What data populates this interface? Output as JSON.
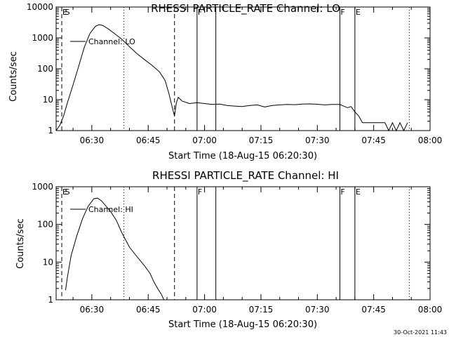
{
  "footer": {
    "timestamp": "30-Oct-2021 11:43"
  },
  "chart_data": [
    {
      "type": "line",
      "title": "RHESSI PARTICLE_RATE Channel: LO",
      "xlabel": "Start Time (18-Aug-15 06:20:30)",
      "ylabel": "Counts/sec",
      "y_scale": "log",
      "ylim": [
        1,
        10000
      ],
      "xlim": [
        "06:20:30",
        "08:00"
      ],
      "x_ticks": [
        "06:30",
        "06:45",
        "07:00",
        "07:15",
        "07:30",
        "07:45",
        "08:00"
      ],
      "y_ticks": [
        "1",
        "10",
        "100",
        "1000",
        "10000"
      ],
      "legend": {
        "label": "Channel: LO",
        "placement": "top-left"
      },
      "series": [
        {
          "name": "Channel: LO",
          "x": [
            "06:20:30",
            "06:21:30",
            "06:22:30",
            "06:23:30",
            "06:25:00",
            "06:26:30",
            "06:28:00",
            "06:29:30",
            "06:31:00",
            "06:32:00",
            "06:33:00",
            "06:34:30",
            "06:36:00",
            "06:38:00",
            "06:40:00",
            "06:42:00",
            "06:44:00",
            "06:46:00",
            "06:48:00",
            "06:49:30",
            "06:50:30",
            "06:51:30",
            "06:52:00",
            "06:52:30",
            "06:53:00",
            "06:54:00",
            "06:56:00",
            "06:58:00",
            "07:00:00",
            "07:02:00",
            "07:04:00",
            "07:06:00",
            "07:08:00",
            "07:10:00",
            "07:12:00",
            "07:14:00",
            "07:16:00",
            "07:18:00",
            "07:20:00",
            "07:22:00",
            "07:24:00",
            "07:26:00",
            "07:28:00",
            "07:30:00",
            "07:32:00",
            "07:34:00",
            "07:36:00",
            "07:38:00",
            "07:39:00",
            "07:40:00",
            "07:41:00",
            "07:42:00",
            "07:43:00",
            "07:44:00",
            "07:45:00",
            "07:46:00",
            "07:47:00",
            "07:48:00",
            "07:49:00",
            "07:50:00",
            "07:51:00",
            "07:52:00",
            "07:53:00",
            "07:54:00"
          ],
          "values": [
            1,
            1.5,
            3,
            8,
            30,
            120,
            500,
            1400,
            2400,
            2700,
            2500,
            1900,
            1400,
            900,
            520,
            310,
            200,
            130,
            80,
            42,
            16,
            5,
            3,
            8,
            12,
            9,
            7.5,
            8,
            7.5,
            7,
            7.2,
            6.5,
            6.2,
            6,
            6.5,
            6.8,
            5.8,
            6.5,
            6.8,
            7,
            6.9,
            7.2,
            7.3,
            7.1,
            6.8,
            7,
            7,
            5.5,
            6,
            4,
            3,
            1.8,
            1.8,
            1.8,
            1.8,
            1.8,
            1.8,
            1.8,
            1,
            1.8,
            1,
            1.8,
            1,
            1.8
          ]
        }
      ],
      "markers": [
        {
          "label": "E",
          "time": "06:22:00",
          "style": "dashed"
        },
        {
          "label": "S",
          "time": "06:22:40",
          "style": "none"
        },
        {
          "label": "",
          "time": "06:38:30",
          "style": "dotted"
        },
        {
          "label": "",
          "time": "06:52:00",
          "style": "dashed"
        },
        {
          "label": "F",
          "time": "06:58:00",
          "style": "solid"
        },
        {
          "label": "",
          "time": "07:03:00",
          "style": "solid"
        },
        {
          "label": "F",
          "time": "07:36:00",
          "style": "solid"
        },
        {
          "label": "E",
          "time": "07:40:00",
          "style": "solid"
        },
        {
          "label": "",
          "time": "07:54:30",
          "style": "dotted"
        }
      ]
    },
    {
      "type": "line",
      "title": "RHESSI PARTICLE_RATE Channel: HI",
      "xlabel": "Start Time (18-Aug-15 06:20:30)",
      "ylabel": "Counts/sec",
      "y_scale": "log",
      "ylim": [
        1,
        1000
      ],
      "xlim": [
        "06:20:30",
        "08:00"
      ],
      "x_ticks": [
        "06:30",
        "06:45",
        "07:00",
        "07:15",
        "07:30",
        "07:45",
        "08:00"
      ],
      "y_ticks": [
        "1",
        "10",
        "100",
        "1000"
      ],
      "legend": {
        "label": "Channel: HI",
        "placement": "top-left"
      },
      "series": [
        {
          "name": "Channel: HI",
          "x": [
            "06:23:00",
            "06:23:30",
            "06:24:30",
            "06:26:00",
            "06:27:30",
            "06:29:00",
            "06:30:30",
            "06:31:30",
            "06:32:30",
            "06:33:30",
            "06:35:00",
            "06:36:30",
            "06:38:00",
            "06:40:00",
            "06:42:00",
            "06:44:00",
            "06:45:30",
            "06:46:30",
            "06:47:30",
            "06:48:30",
            "06:49:10"
          ],
          "values": [
            1.8,
            4,
            15,
            50,
            140,
            300,
            480,
            500,
            430,
            330,
            220,
            130,
            60,
            25,
            14,
            8,
            5,
            3,
            2,
            1.4,
            1
          ]
        }
      ],
      "markers": [
        {
          "label": "E",
          "time": "06:22:00",
          "style": "dashed"
        },
        {
          "label": "S",
          "time": "06:22:40",
          "style": "none"
        },
        {
          "label": "",
          "time": "06:38:30",
          "style": "dotted"
        },
        {
          "label": "",
          "time": "06:52:00",
          "style": "dashed"
        },
        {
          "label": "F",
          "time": "06:58:00",
          "style": "solid"
        },
        {
          "label": "",
          "time": "07:03:00",
          "style": "solid"
        },
        {
          "label": "F",
          "time": "07:36:00",
          "style": "solid"
        },
        {
          "label": "E",
          "time": "07:40:00",
          "style": "solid"
        },
        {
          "label": "",
          "time": "07:54:30",
          "style": "dotted"
        }
      ]
    }
  ]
}
